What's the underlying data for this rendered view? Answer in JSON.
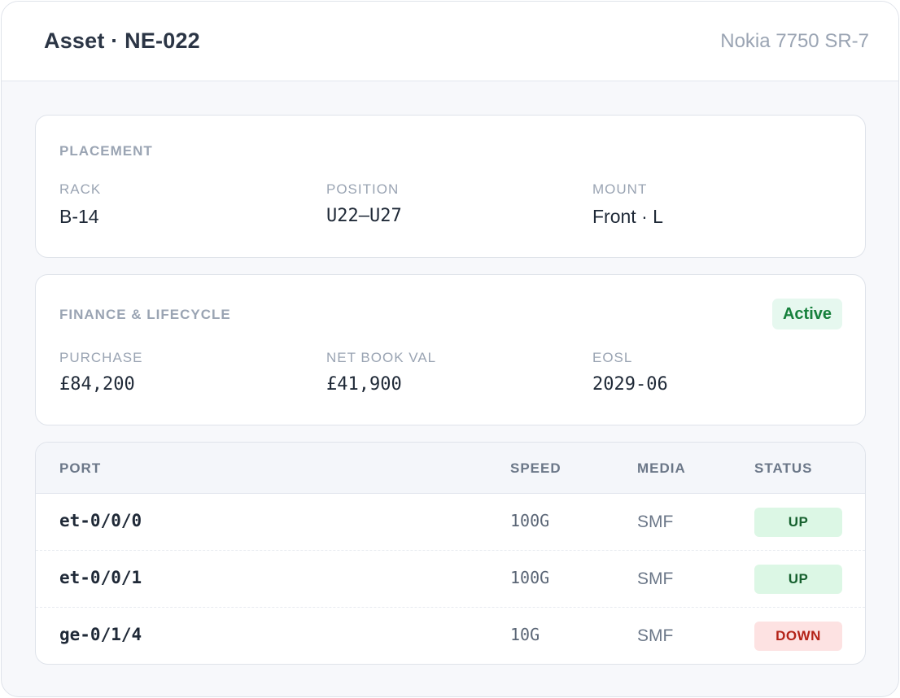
{
  "header": {
    "title": "Asset · NE-022",
    "model": "Nokia 7750 SR-7"
  },
  "placement": {
    "section_label": "PLACEMENT",
    "rack_label": "RACK",
    "rack_value": "B-14",
    "position_label": "POSITION",
    "position_value": "U22–U27",
    "mount_label": "MOUNT",
    "mount_value": "Front · L"
  },
  "finance": {
    "section_label": "FINANCE & LIFECYCLE",
    "status_badge": "Active",
    "purchase_label": "PURCHASE",
    "purchase_value": "£84,200",
    "nbv_label": "NET BOOK VAL",
    "nbv_value": "£41,900",
    "eosl_label": "EOSL",
    "eosl_value": "2029-06"
  },
  "ports": {
    "columns": [
      "PORT",
      "SPEED",
      "MEDIA",
      "STATUS"
    ],
    "rows": [
      {
        "port": "et-0/0/0",
        "speed": "100G",
        "media": "SMF",
        "status": "UP"
      },
      {
        "port": "et-0/0/1",
        "speed": "100G",
        "media": "SMF",
        "status": "UP"
      },
      {
        "port": "ge-0/1/4",
        "speed": "10G",
        "media": "SMF",
        "status": "DOWN"
      }
    ]
  },
  "colors": {
    "up_bg": "#dcf7e5",
    "up_text": "#17612f",
    "down_bg": "#fde2e2",
    "down_text": "#b42318",
    "active_bg": "#e6f8ef",
    "active_text": "#16803c"
  }
}
